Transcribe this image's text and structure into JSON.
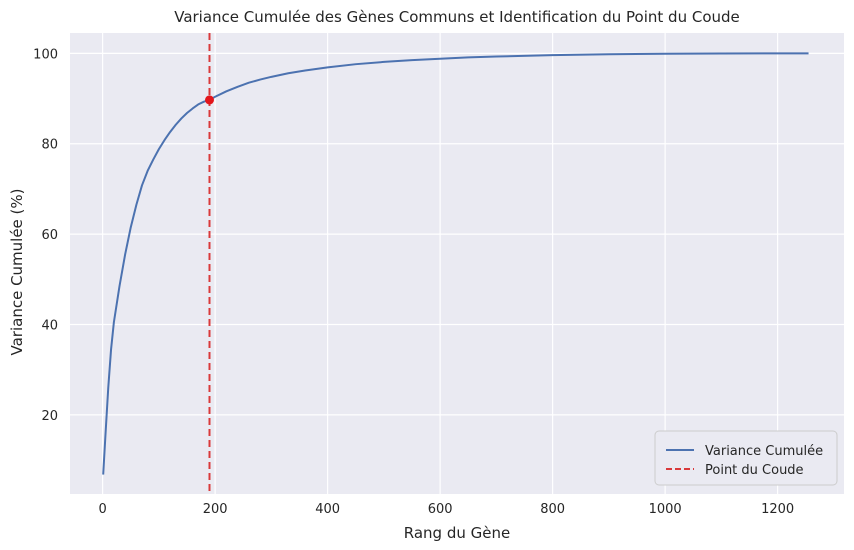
{
  "chart_data": {
    "type": "line",
    "title": "Variance Cumulée des Gènes Communs et Identification du Point du Coude",
    "xlabel": "Rang du Gène",
    "ylabel": "Variance Cumulée (%)",
    "xlim": [
      -58,
      1318
    ],
    "ylim": [
      2.5,
      104.5
    ],
    "xticks": [
      0,
      200,
      400,
      600,
      800,
      1000,
      1200
    ],
    "yticks": [
      20,
      40,
      60,
      80,
      100
    ],
    "grid": true,
    "legend_position": "bottom-right",
    "series": [
      {
        "name": "Variance Cumulée",
        "color": "#4c72b0",
        "style": "solid",
        "x": [
          1,
          5,
          10,
          15,
          20,
          30,
          40,
          50,
          60,
          70,
          80,
          90,
          100,
          110,
          120,
          130,
          140,
          150,
          160,
          170,
          180,
          190,
          200,
          220,
          240,
          260,
          280,
          300,
          330,
          360,
          400,
          450,
          500,
          550,
          600,
          650,
          700,
          800,
          900,
          1000,
          1100,
          1200,
          1255
        ],
        "y": [
          6.8,
          15.5,
          26.0,
          34.5,
          40.5,
          48.5,
          55.5,
          61.5,
          66.5,
          70.8,
          74.0,
          76.5,
          78.8,
          80.8,
          82.6,
          84.2,
          85.6,
          86.8,
          87.8,
          88.7,
          89.3,
          89.7,
          90.4,
          91.6,
          92.6,
          93.5,
          94.2,
          94.8,
          95.6,
          96.2,
          96.9,
          97.6,
          98.1,
          98.5,
          98.8,
          99.1,
          99.3,
          99.6,
          99.8,
          99.9,
          99.95,
          100.0,
          100.0
        ]
      },
      {
        "name": "Point du Coude",
        "color": "#d9393b",
        "style": "dashed",
        "vline_x": 190
      }
    ],
    "elbow_point": {
      "x": 190,
      "y": 89.7,
      "color": "#e3151b"
    }
  }
}
